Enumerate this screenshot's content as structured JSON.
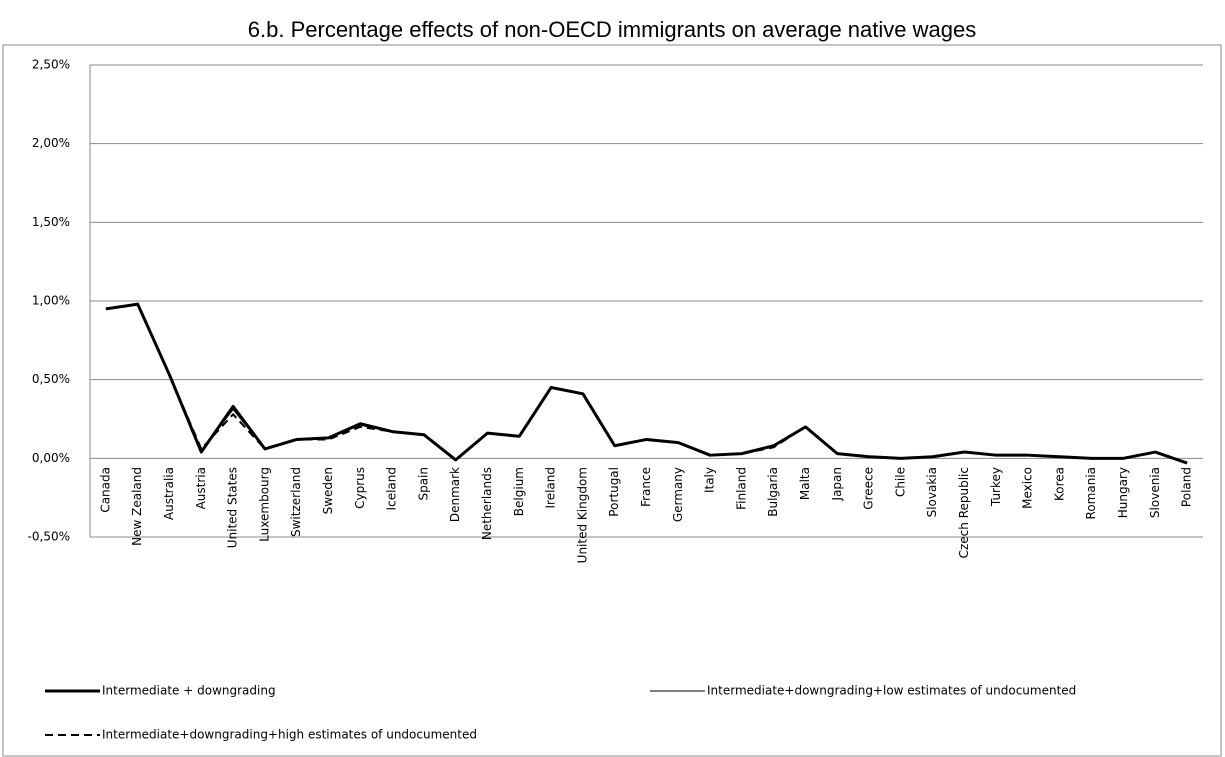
{
  "chart_data": {
    "type": "line",
    "title": "6.b. Percentage effects of non-OECD immigrants on average native wages",
    "categories": [
      "Canada",
      "New Zealand",
      "Australia",
      "Austria",
      "United States",
      "Luxembourg",
      "Switzerland",
      "Sweden",
      "Cyprus",
      "Iceland",
      "Spain",
      "Denmark",
      "Netherlands",
      "Belgium",
      "Ireland",
      "United Kingdom",
      "Portugal",
      "France",
      "Germany",
      "Italy",
      "Finland",
      "Bulgaria",
      "Malta",
      "Japan",
      "Greece",
      "Chile",
      "Slovakia",
      "Czech Republic",
      "Turkey",
      "Mexico",
      "Korea",
      "Romania",
      "Hungary",
      "Slovenia",
      "Poland"
    ],
    "series": [
      {
        "name": "Intermediate + downgrading",
        "color": "#000000",
        "linestyle": "solid",
        "linewidth": 3,
        "values": [
          0.95,
          0.98,
          0.53,
          0.04,
          0.33,
          0.06,
          0.12,
          0.13,
          0.22,
          0.17,
          0.15,
          -0.01,
          0.16,
          0.14,
          0.45,
          0.41,
          0.08,
          0.12,
          0.1,
          0.02,
          0.03,
          0.08,
          0.2,
          0.03,
          0.01,
          0.0,
          0.01,
          0.04,
          0.02,
          0.02,
          0.01,
          0.0,
          0.0,
          0.04,
          -0.03
        ]
      },
      {
        "name": "Intermediate+downgrading+low estimates of undocumented",
        "color": "#000000",
        "linestyle": "solid",
        "linewidth": 1,
        "values": [
          0.95,
          0.98,
          0.53,
          0.05,
          0.31,
          0.06,
          0.12,
          0.13,
          0.21,
          0.17,
          0.15,
          -0.01,
          0.16,
          0.14,
          0.45,
          0.41,
          0.08,
          0.12,
          0.1,
          0.02,
          0.03,
          0.08,
          0.2,
          0.03,
          0.01,
          0.0,
          0.01,
          0.04,
          0.02,
          0.02,
          0.01,
          0.0,
          0.0,
          0.04,
          -0.03
        ]
      },
      {
        "name": "Intermediate+downgrading+high estimates of undocumented",
        "color": "#000000",
        "linestyle": "dashed",
        "linewidth": 2,
        "values": [
          0.95,
          0.98,
          0.53,
          0.06,
          0.28,
          0.06,
          0.12,
          0.12,
          0.2,
          0.17,
          0.15,
          -0.01,
          0.16,
          0.14,
          0.45,
          0.41,
          0.08,
          0.12,
          0.1,
          0.02,
          0.03,
          0.07,
          0.2,
          0.03,
          0.01,
          0.0,
          0.01,
          0.04,
          0.02,
          0.02,
          0.01,
          0.0,
          0.0,
          0.04,
          -0.03
        ]
      }
    ],
    "ylim": [
      -0.5,
      2.5
    ],
    "yticks": [
      {
        "value": -0.5,
        "label": "-0,50%"
      },
      {
        "value": 0,
        "label": "0,00%"
      },
      {
        "value": 0.5,
        "label": "0,50%"
      },
      {
        "value": 1,
        "label": "1,00%"
      },
      {
        "value": 1.5,
        "label": "1,50%"
      },
      {
        "value": 2,
        "label": "2,00%"
      },
      {
        "value": 2.5,
        "label": "2,50%"
      }
    ],
    "grid": true
  }
}
